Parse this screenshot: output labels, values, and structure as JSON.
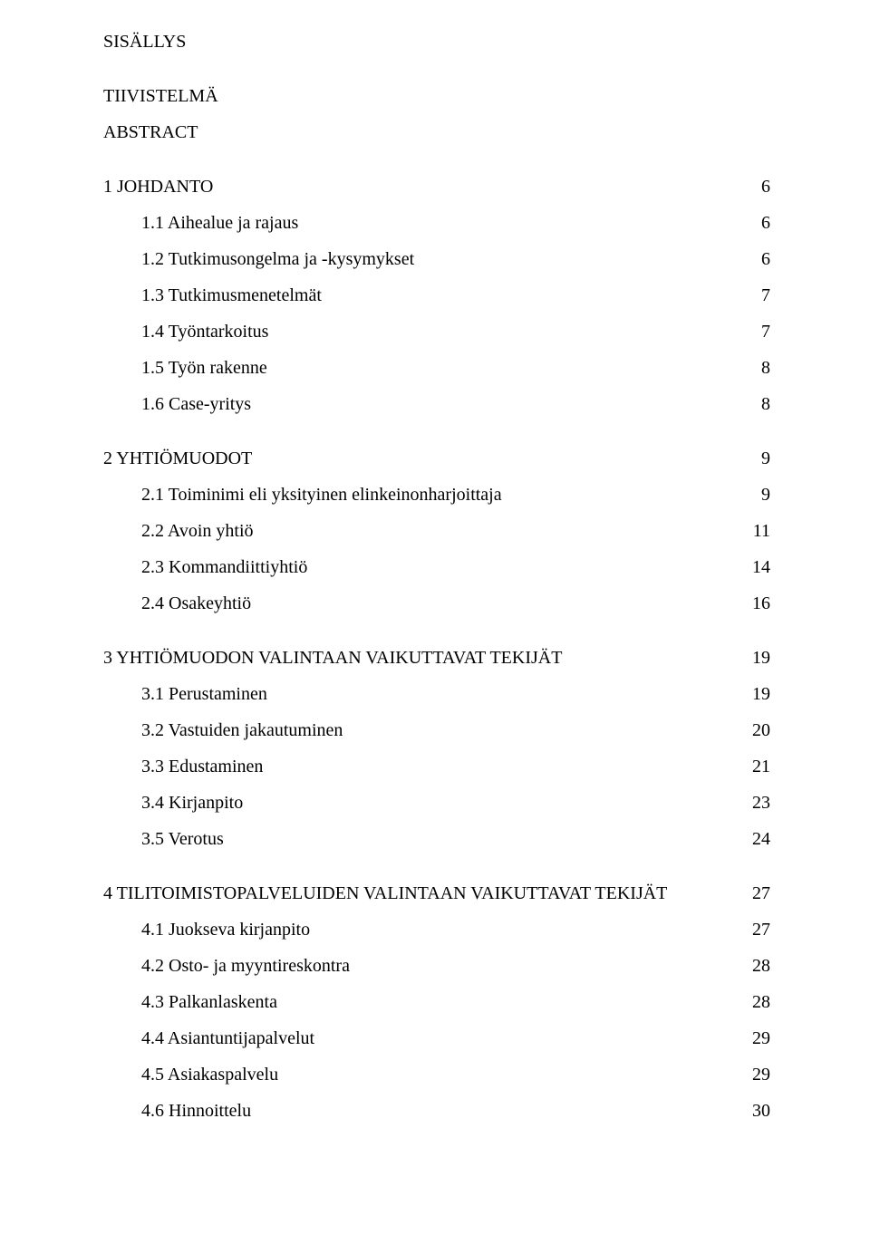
{
  "title": "SISÄLLYS",
  "front": [
    "TIIVISTELMÄ",
    "ABSTRACT"
  ],
  "sections": [
    {
      "heading": {
        "label": "1 JOHDANTO",
        "page": "6"
      },
      "items": [
        {
          "label": "1.1 Aihealue ja rajaus",
          "page": "6"
        },
        {
          "label": "1.2 Tutkimusongelma ja -kysymykset",
          "page": "6"
        },
        {
          "label": "1.3 Tutkimusmenetelmät",
          "page": "7"
        },
        {
          "label": "1.4 Työntarkoitus",
          "page": "7"
        },
        {
          "label": "1.5 Työn rakenne",
          "page": "8"
        },
        {
          "label": "1.6 Case-yritys",
          "page": "8"
        }
      ]
    },
    {
      "heading": {
        "label": "2 YHTIÖMUODOT",
        "page": "9"
      },
      "items": [
        {
          "label": "2.1 Toiminimi eli yksityinen elinkeinonharjoittaja",
          "page": "9"
        },
        {
          "label": "2.2 Avoin yhtiö",
          "page": "11"
        },
        {
          "label": "2.3 Kommandiittiyhtiö",
          "page": "14"
        },
        {
          "label": "2.4 Osakeyhtiö",
          "page": "16"
        }
      ]
    },
    {
      "heading": {
        "label": "3 YHTIÖMUODON VALINTAAN VAIKUTTAVAT TEKIJÄT",
        "page": "19"
      },
      "items": [
        {
          "label": "3.1 Perustaminen",
          "page": "19"
        },
        {
          "label": "3.2 Vastuiden jakautuminen",
          "page": "20"
        },
        {
          "label": "3.3 Edustaminen",
          "page": "21"
        },
        {
          "label": "3.4 Kirjanpito",
          "page": "23"
        },
        {
          "label": "3.5 Verotus",
          "page": "24"
        }
      ]
    },
    {
      "heading": {
        "label": "4 TILITOIMISTOPALVELUIDEN VALINTAAN VAIKUTTAVAT TEKIJÄT",
        "page": "27"
      },
      "items": [
        {
          "label": "4.1 Juokseva kirjanpito",
          "page": "27"
        },
        {
          "label": "4.2 Osto- ja myyntireskontra",
          "page": "28"
        },
        {
          "label": "4.3 Palkanlaskenta",
          "page": "28"
        },
        {
          "label": "4.4 Asiantuntijapalvelut",
          "page": "29"
        },
        {
          "label": "4.5 Asiakaspalvelu",
          "page": "29"
        },
        {
          "label": "4.6 Hinnoittelu",
          "page": "30"
        }
      ]
    }
  ]
}
